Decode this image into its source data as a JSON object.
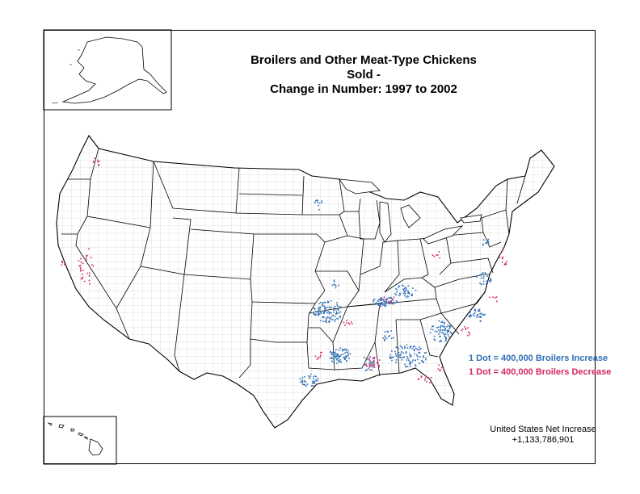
{
  "title_line1": "Broilers and Other Meat-Type Chickens Sold -",
  "title_line2": "Change in Number:  1997 to 2002",
  "legend": {
    "increase_label": "1 Dot = 400,000 Broilers Increase",
    "decrease_label": "1 Dot = 400,000 Broilers Decrease"
  },
  "net": {
    "label": "United States Net Increase",
    "value": "+1,133,786,901"
  },
  "colors": {
    "increase": "#2e6fb7",
    "decrease": "#d6285e",
    "outline": "#000000",
    "county_lines": "#b8b8b8"
  }
}
